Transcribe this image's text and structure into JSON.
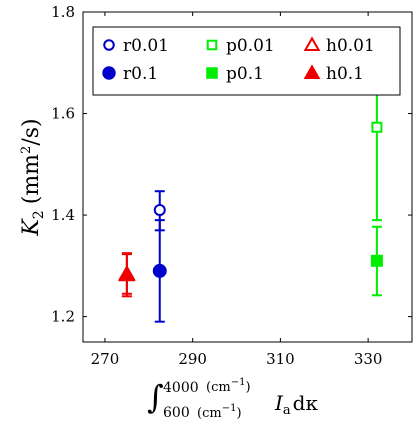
{
  "chart_data": {
    "type": "scatter",
    "title": "",
    "xlabel": {
      "int_lower": "600",
      "int_upper": "4000",
      "unit_lower": "(cm",
      "unit_upper": "(cm",
      "unit_exp": "−1",
      "unit_close": ")",
      "integrand": "I",
      "integrand_sub": "a",
      "diff": "dκ"
    },
    "ylabel": {
      "symbol": "K",
      "sub": "2",
      "unit_open": "(mm",
      "unit_exp": "2",
      "unit_close": "/s)"
    },
    "xlim": [
      265,
      340
    ],
    "ylim": [
      1.15,
      1.8
    ],
    "xticks": [
      270,
      290,
      310,
      330
    ],
    "yticks": [
      1.2,
      1.4,
      1.6,
      1.8
    ],
    "xtick_labels": [
      "270",
      "290",
      "310",
      "330"
    ],
    "ytick_labels": [
      "1.2",
      "1.4",
      "1.6",
      "1.8"
    ],
    "legend_position": "top",
    "series": [
      {
        "name": "r0.01",
        "color": "#0000cc",
        "marker": "circle",
        "filled": false,
        "x": 282.5,
        "y": 1.41,
        "yerr_low": 1.37,
        "yerr_high": 1.447
      },
      {
        "name": "p0.01",
        "color": "#00ee00",
        "marker": "square",
        "filled": false,
        "x": 332,
        "y": 1.573,
        "yerr_low": 1.39,
        "yerr_high": 1.757
      },
      {
        "name": "h0.01",
        "color": "#ee0000",
        "marker": "triangle",
        "filled": false,
        "x": 275,
        "y": 1.284,
        "yerr_low": 1.245,
        "yerr_high": 1.323
      },
      {
        "name": "r0.1",
        "color": "#0000cc",
        "marker": "circle",
        "filled": true,
        "x": 282.5,
        "y": 1.29,
        "yerr_low": 1.19,
        "yerr_high": 1.39
      },
      {
        "name": "p0.1",
        "color": "#00ee00",
        "marker": "square",
        "filled": true,
        "x": 332,
        "y": 1.31,
        "yerr_low": 1.242,
        "yerr_high": 1.377
      },
      {
        "name": "h0.1",
        "color": "#ee0000",
        "marker": "triangle",
        "filled": true,
        "x": 275,
        "y": 1.282,
        "yerr_low": 1.24,
        "yerr_high": 1.325
      }
    ]
  }
}
